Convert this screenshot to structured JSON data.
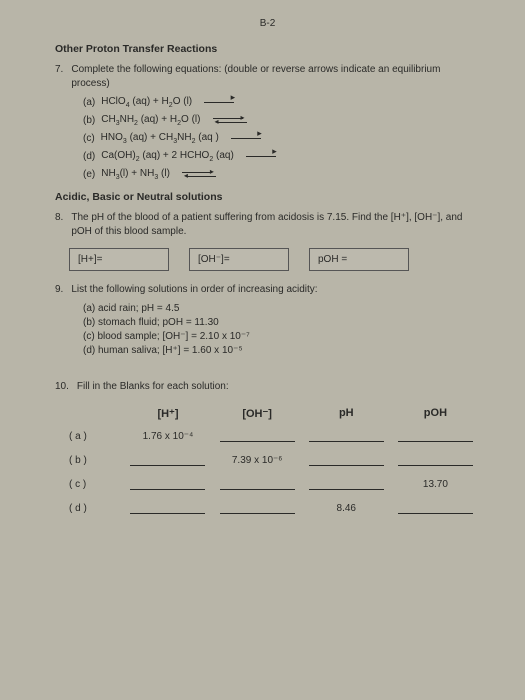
{
  "pageNumber": "B-2",
  "section1": {
    "title": "Other Proton Transfer Reactions",
    "q7": {
      "num": "7.",
      "text": "Complete the following equations: (double or reverse arrows indicate an equilibrium process)",
      "items": {
        "a": {
          "label": "(a)",
          "eq1": "HClO",
          "sub1": "4",
          "st1": " (aq)  +  H",
          "sub2": "2",
          "eq2": "O (l)"
        },
        "b": {
          "label": "(b)",
          "eq1": "CH",
          "sub1": "3",
          "eq2": "NH",
          "sub2": "2",
          "st1": " (aq)  +  H",
          "sub3": "2",
          "eq3": "O (l)"
        },
        "c": {
          "label": "(c)",
          "eq1": "HNO",
          "sub1": "3",
          "st1": " (aq)  +  CH",
          "sub2": "3",
          "eq2": "NH",
          "sub3": "2",
          "st2": " (aq )"
        },
        "d": {
          "label": "(d)",
          "eq1": "Ca(OH)",
          "sub1": "2",
          "st1": " (aq)  +  2 HCHO",
          "sub2": "2",
          "st2": " (aq)"
        },
        "e": {
          "label": "(e)",
          "eq1": "NH",
          "sub1": "3",
          "st1": "(l)  +   NH",
          "sub2": "3",
          "st2": " (l)"
        }
      }
    }
  },
  "section2": {
    "title": "Acidic, Basic or Neutral solutions",
    "q8": {
      "num": "8.",
      "text": "The pH of the blood of a patient suffering from acidosis is 7.15. Find the [H⁺], [OH⁻], and pOH of this blood sample.",
      "box1": "[H+]=",
      "box2": "[OH⁻]=",
      "box3": "pOH ="
    },
    "q9": {
      "num": "9.",
      "text": "List the following solutions in order of increasing acidity:",
      "a": "(a)  acid rain;  pH = 4.5",
      "b": "(b)  stomach fluid;  pOH = 11.30",
      "c": "(c)  blood sample;  [OH⁻] = 2.10 x 10⁻⁷",
      "d": "(d)  human saliva;  [H⁺] = 1.60 x 10⁻⁵"
    },
    "q10": {
      "num": "10.",
      "text": "Fill in the Blanks for each solution:",
      "headers": {
        "h1": "[H⁺]",
        "h2": "[OH⁻]",
        "h3": "pH",
        "h4": "pOH"
      },
      "rows": {
        "a": {
          "label": "( a )",
          "c1": "1.76 x 10⁻⁴",
          "c2": "",
          "c3": "",
          "c4": ""
        },
        "b": {
          "label": "( b )",
          "c1": "",
          "c2": "7.39 x 10⁻⁶",
          "c3": "",
          "c4": ""
        },
        "c": {
          "label": "( c )",
          "c1": "",
          "c2": "",
          "c3": "",
          "c4": "13.70"
        },
        "d": {
          "label": "( d )",
          "c1": "",
          "c2": "",
          "c3": "8.46",
          "c4": ""
        }
      }
    }
  }
}
